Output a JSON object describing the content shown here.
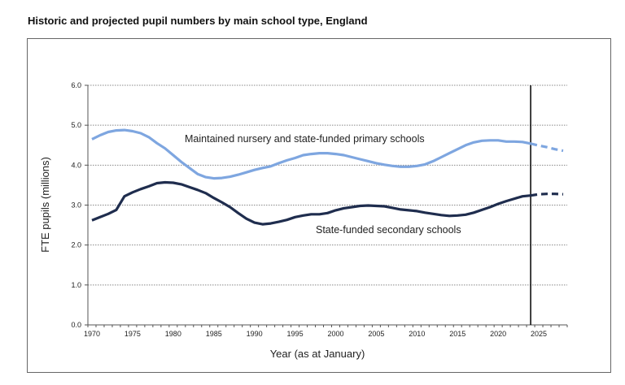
{
  "chart_data": {
    "type": "line",
    "title": "Historic and projected pupil numbers by main school type, England",
    "xlabel": "Year (as at January)",
    "ylabel": "FTE pupils (millions)",
    "ylim": [
      0,
      6
    ],
    "yticks": [
      "0.0",
      "1.0",
      "2.0",
      "3.0",
      "4.0",
      "5.0",
      "6.0"
    ],
    "xticks": [
      "1970",
      "1975",
      "1980",
      "1985",
      "1990",
      "1995",
      "2000",
      "2005",
      "2010",
      "2015",
      "2020",
      "2025"
    ],
    "grid": "horizontal dotted",
    "projection_start": 2024,
    "x": [
      1970,
      1971,
      1972,
      1973,
      1974,
      1975,
      1976,
      1977,
      1978,
      1979,
      1980,
      1981,
      1982,
      1983,
      1984,
      1985,
      1986,
      1987,
      1988,
      1989,
      1990,
      1991,
      1992,
      1993,
      1994,
      1995,
      1996,
      1997,
      1998,
      1999,
      2000,
      2001,
      2002,
      2003,
      2004,
      2005,
      2006,
      2007,
      2008,
      2009,
      2010,
      2011,
      2012,
      2013,
      2014,
      2015,
      2016,
      2017,
      2018,
      2019,
      2020,
      2021,
      2022,
      2023,
      2024,
      2025,
      2026,
      2027,
      2028
    ],
    "series": [
      {
        "name": "Maintained nursery and state-funded primary schools",
        "color": "#7ea6e0",
        "values": [
          4.65,
          4.75,
          4.83,
          4.87,
          4.88,
          4.85,
          4.8,
          4.7,
          4.55,
          4.42,
          4.25,
          4.08,
          3.93,
          3.78,
          3.7,
          3.67,
          3.68,
          3.71,
          3.76,
          3.82,
          3.88,
          3.93,
          3.97,
          4.05,
          4.12,
          4.18,
          4.25,
          4.28,
          4.3,
          4.3,
          4.28,
          4.25,
          4.2,
          4.15,
          4.1,
          4.05,
          4.01,
          3.98,
          3.96,
          3.96,
          3.98,
          4.02,
          4.1,
          4.2,
          4.3,
          4.4,
          4.5,
          4.57,
          4.61,
          4.62,
          4.62,
          4.59,
          4.59,
          4.58,
          4.54,
          4.49,
          4.45,
          4.4,
          4.36
        ]
      },
      {
        "name": "State-funded secondary schools",
        "color": "#1f2d4e",
        "values": [
          2.62,
          2.7,
          2.78,
          2.88,
          3.22,
          3.32,
          3.4,
          3.47,
          3.55,
          3.57,
          3.56,
          3.52,
          3.45,
          3.38,
          3.3,
          3.18,
          3.07,
          2.95,
          2.8,
          2.66,
          2.56,
          2.52,
          2.54,
          2.58,
          2.63,
          2.7,
          2.74,
          2.77,
          2.77,
          2.8,
          2.87,
          2.92,
          2.95,
          2.98,
          2.99,
          2.98,
          2.97,
          2.93,
          2.89,
          2.87,
          2.85,
          2.81,
          2.78,
          2.75,
          2.73,
          2.74,
          2.76,
          2.81,
          2.88,
          2.95,
          3.03,
          3.1,
          3.16,
          3.22,
          3.24,
          3.27,
          3.28,
          3.28,
          3.27
        ]
      }
    ]
  }
}
